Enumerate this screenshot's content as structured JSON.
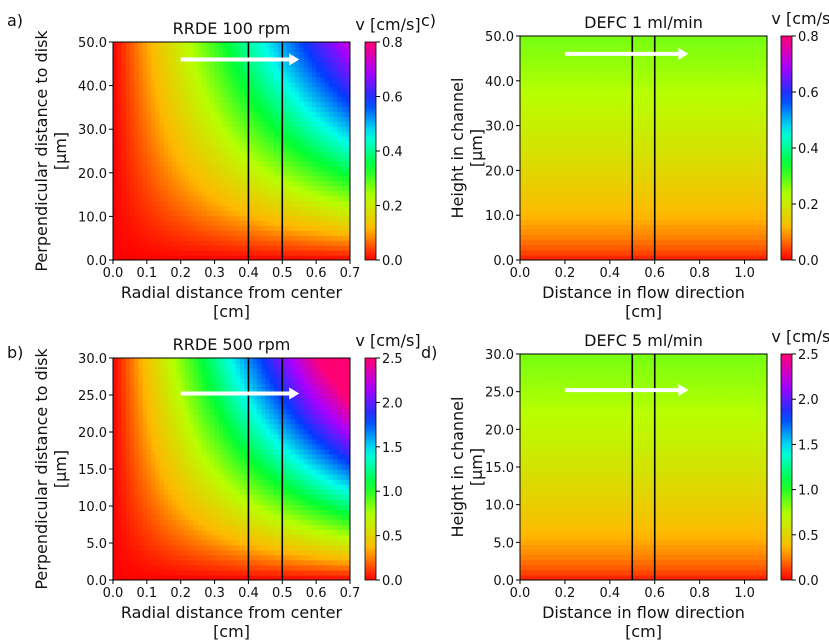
{
  "chart_data": [
    {
      "panel": "a)",
      "type": "heatmap",
      "title": "RRDE 100 rpm",
      "xlabel_lines": [
        "Radial distance from center",
        "[cm]"
      ],
      "ylabel_lines": [
        "Perpendicular distance to disk",
        "[μm]"
      ],
      "xticks": [
        "0.0",
        "0.1",
        "0.2",
        "0.3",
        "0.4",
        "0.5",
        "0.6",
        "0.7"
      ],
      "yticks": [
        "0.0",
        "10.0",
        "20.0",
        "30.0",
        "40.0",
        "50.0"
      ],
      "xlim": [
        0,
        0.7
      ],
      "ylim": [
        0,
        50
      ],
      "vertical_lines": [
        0.4,
        0.5
      ],
      "arrow": {
        "x_from": 0.2,
        "x_to": 0.55,
        "y": 46
      },
      "field": "rrde",
      "colorbar": {
        "label": "v [cm/s]",
        "ticks": [
          "0.0",
          "0.2",
          "0.4",
          "0.6",
          "0.8"
        ],
        "vmin": 0,
        "vmax": 0.8
      }
    },
    {
      "panel": "c)",
      "type": "heatmap",
      "title": "DEFC 1 ml/min",
      "xlabel_lines": [
        "Distance in flow direction",
        "[cm]"
      ],
      "ylabel_lines": [
        "Height in channel",
        "[μm]"
      ],
      "xticks": [
        "0.0",
        "0.2",
        "0.4",
        "0.6",
        "0.8",
        "1.0"
      ],
      "yticks": [
        "0.0",
        "10.0",
        "20.0",
        "30.0",
        "40.0",
        "50.0"
      ],
      "xlim": [
        0,
        1.1
      ],
      "ylim": [
        0,
        50
      ],
      "vertical_lines": [
        0.5,
        0.6
      ],
      "arrow": {
        "x_from": 0.2,
        "x_to": 0.75,
        "y": 46
      },
      "field": "defc",
      "colorbar": {
        "label": "v [cm/s]",
        "ticks": [
          "0.0",
          "0.2",
          "0.4",
          "0.6",
          "0.8"
        ],
        "vmin": 0,
        "vmax": 0.8
      }
    },
    {
      "panel": "b)",
      "type": "heatmap",
      "title": "RRDE 500 rpm",
      "xlabel_lines": [
        "Radial distance from center",
        "[cm]"
      ],
      "ylabel_lines": [
        "Perpendicular distance to disk",
        "[μm]"
      ],
      "xticks": [
        "0.0",
        "0.1",
        "0.2",
        "0.3",
        "0.4",
        "0.5",
        "0.6",
        "0.7"
      ],
      "yticks": [
        "0.0",
        "5.0",
        "10.0",
        "15.0",
        "20.0",
        "25.0",
        "30.0"
      ],
      "xlim": [
        0,
        0.7
      ],
      "ylim": [
        0,
        30
      ],
      "vertical_lines": [
        0.4,
        0.5
      ],
      "arrow": {
        "x_from": 0.2,
        "x_to": 0.55,
        "y": 25.2
      },
      "field": "rrde",
      "colorbar": {
        "label": "v [cm/s]",
        "ticks": [
          "0.0",
          "0.5",
          "1.0",
          "1.5",
          "2.0",
          "2.5"
        ],
        "vmin": 0,
        "vmax": 2.5
      }
    },
    {
      "panel": "d)",
      "type": "heatmap",
      "title": "DEFC 5 ml/min",
      "xlabel_lines": [
        "Distance in flow direction",
        "[cm]"
      ],
      "ylabel_lines": [
        "Height in channel",
        "[μm]"
      ],
      "xticks": [
        "0.0",
        "0.2",
        "0.4",
        "0.6",
        "0.8",
        "1.0"
      ],
      "yticks": [
        "0.0",
        "5.0",
        "10.0",
        "15.0",
        "20.0",
        "25.0",
        "30.0"
      ],
      "xlim": [
        0,
        1.1
      ],
      "ylim": [
        0,
        30
      ],
      "vertical_lines": [
        0.5,
        0.6
      ],
      "arrow": {
        "x_from": 0.2,
        "x_to": 0.75,
        "y": 25.2
      },
      "field": "defc",
      "colorbar": {
        "label": "v [cm/s]",
        "ticks": [
          "0.0",
          "0.5",
          "1.0",
          "1.5",
          "2.0",
          "2.5"
        ],
        "vmin": 0,
        "vmax": 2.5
      }
    }
  ],
  "colormap": "gist_rainbow"
}
